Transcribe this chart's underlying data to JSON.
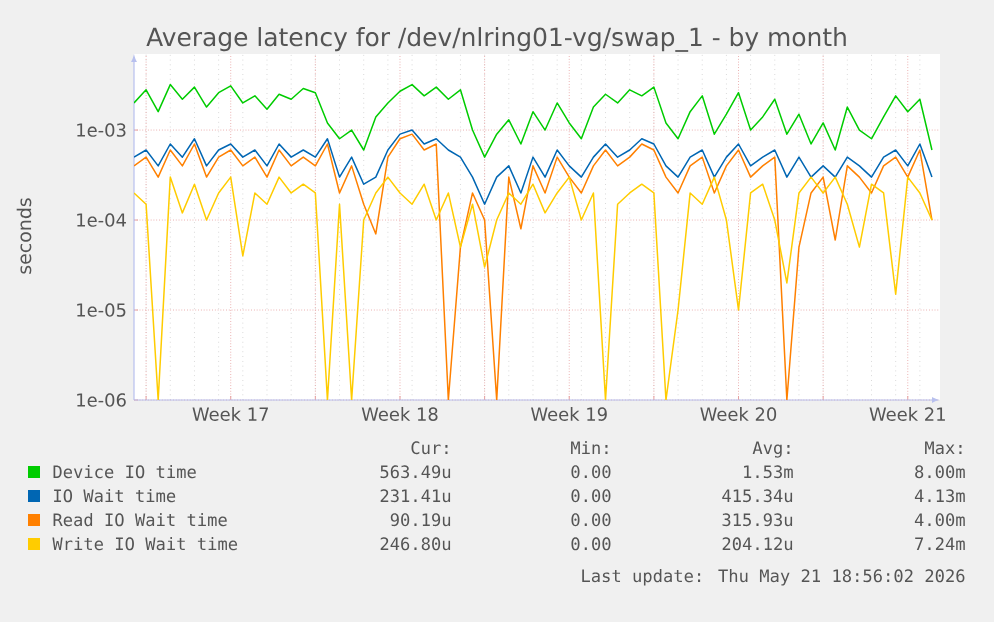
{
  "chart_data": {
    "type": "line",
    "title": "Average latency for /dev/nlring01-vg/swap_1 - by month",
    "ylabel": "seconds",
    "log": "y",
    "grid": true,
    "legend": "bottom",
    "ylim": [
      1e-06,
      0.007
    ],
    "yticks": [
      {
        "value": 1e-06,
        "label": "1e-06"
      },
      {
        "value": 1e-05,
        "label": "1e-05"
      },
      {
        "value": 0.0001,
        "label": "1e-04"
      },
      {
        "value": 0.001,
        "label": "1e-03"
      }
    ],
    "xlim": [
      "2026-04-19T12:00",
      "2026-05-22T20:00"
    ],
    "xticks": [
      {
        "value": "2026-04-20",
        "label": null
      },
      {
        "value": "2026-04-23T12:00",
        "label": "Week 17"
      },
      {
        "value": "2026-04-27",
        "label": null
      },
      {
        "value": "2026-04-30T12:00",
        "label": "Week 18"
      },
      {
        "value": "2026-05-04",
        "label": null
      },
      {
        "value": "2026-05-07T12:00",
        "label": "Week 19"
      },
      {
        "value": "2026-05-11",
        "label": null
      },
      {
        "value": "2026-05-14T12:00",
        "label": "Week 20"
      },
      {
        "value": "2026-05-18",
        "label": null
      },
      {
        "value": "2026-05-21T12:00",
        "label": "Week 21"
      }
    ],
    "x": [
      "2026-04-19T12:00",
      "2026-04-20",
      "2026-04-20T12:00",
      "2026-04-21",
      "2026-04-21T12:00",
      "2026-04-22",
      "2026-04-22T12:00",
      "2026-04-23",
      "2026-04-23T12:00",
      "2026-04-24",
      "2026-04-24T12:00",
      "2026-04-25",
      "2026-04-25T12:00",
      "2026-04-26",
      "2026-04-26T12:00",
      "2026-04-27",
      "2026-04-27T12:00",
      "2026-04-28",
      "2026-04-28T12:00",
      "2026-04-29",
      "2026-04-29T12:00",
      "2026-04-30",
      "2026-04-30T12:00",
      "2026-05-01",
      "2026-05-01T12:00",
      "2026-05-02",
      "2026-05-02T12:00",
      "2026-05-03",
      "2026-05-03T12:00",
      "2026-05-04",
      "2026-05-04T12:00",
      "2026-05-05",
      "2026-05-05T12:00",
      "2026-05-06",
      "2026-05-06T12:00",
      "2026-05-07",
      "2026-05-07T12:00",
      "2026-05-08",
      "2026-05-08T12:00",
      "2026-05-09",
      "2026-05-09T12:00",
      "2026-05-10",
      "2026-05-10T12:00",
      "2026-05-11",
      "2026-05-11T12:00",
      "2026-05-12",
      "2026-05-12T12:00",
      "2026-05-13",
      "2026-05-13T12:00",
      "2026-05-14",
      "2026-05-14T12:00",
      "2026-05-15",
      "2026-05-15T12:00",
      "2026-05-16",
      "2026-05-16T12:00",
      "2026-05-17",
      "2026-05-17T12:00",
      "2026-05-18",
      "2026-05-18T12:00",
      "2026-05-19",
      "2026-05-19T12:00",
      "2026-05-20",
      "2026-05-20T12:00",
      "2026-05-21",
      "2026-05-21T12:00",
      "2026-05-22",
      "2026-05-22T12:00"
    ],
    "series": [
      {
        "name": "Device IO time",
        "color": "#00cc00",
        "values": [
          0.002,
          0.0028,
          0.0016,
          0.0032,
          0.0022,
          0.003,
          0.0018,
          0.0026,
          0.0031,
          0.002,
          0.0024,
          0.0017,
          0.0025,
          0.0022,
          0.0029,
          0.0026,
          0.0012,
          0.0008,
          0.001,
          0.0006,
          0.0014,
          0.002,
          0.0027,
          0.0032,
          0.0024,
          0.003,
          0.0022,
          0.0028,
          0.001,
          0.0005,
          0.0009,
          0.0013,
          0.0007,
          0.0016,
          0.001,
          0.002,
          0.0012,
          0.0008,
          0.0018,
          0.0025,
          0.002,
          0.0028,
          0.0024,
          0.003,
          0.0012,
          0.0008,
          0.0016,
          0.0024,
          0.0009,
          0.0015,
          0.0026,
          0.001,
          0.0014,
          0.0022,
          0.0009,
          0.0015,
          0.0007,
          0.0012,
          0.0006,
          0.0018,
          0.001,
          0.0008,
          0.0014,
          0.0024,
          0.0016,
          0.0022,
          0.0006
        ]
      },
      {
        "name": "IO Wait time",
        "color": "#0066b3",
        "values": [
          0.0005,
          0.0006,
          0.0004,
          0.0007,
          0.0005,
          0.0008,
          0.0004,
          0.0006,
          0.0007,
          0.0005,
          0.0006,
          0.0004,
          0.0007,
          0.0005,
          0.0006,
          0.0005,
          0.0008,
          0.0003,
          0.0005,
          0.00025,
          0.0003,
          0.0006,
          0.0009,
          0.001,
          0.0007,
          0.0008,
          0.0006,
          0.0005,
          0.0003,
          0.00015,
          0.0003,
          0.0004,
          0.0002,
          0.0005,
          0.0003,
          0.0006,
          0.0004,
          0.0003,
          0.0005,
          0.0007,
          0.0005,
          0.0006,
          0.0008,
          0.0007,
          0.0004,
          0.0003,
          0.0005,
          0.0006,
          0.0003,
          0.0005,
          0.0007,
          0.0004,
          0.0005,
          0.0006,
          0.0003,
          0.0005,
          0.0003,
          0.0004,
          0.0003,
          0.0005,
          0.0004,
          0.0003,
          0.0005,
          0.0006,
          0.0004,
          0.0007,
          0.0003
        ]
      },
      {
        "name": "Read IO Wait time",
        "color": "#ff8000",
        "values": [
          0.0004,
          0.0005,
          0.0003,
          0.0006,
          0.0004,
          0.0007,
          0.0003,
          0.0005,
          0.0006,
          0.0004,
          0.0005,
          0.0003,
          0.0006,
          0.0004,
          0.0005,
          0.0004,
          0.0007,
          0.0002,
          0.0004,
          0.00015,
          7e-05,
          0.0005,
          0.0008,
          0.0009,
          0.0006,
          0.0007,
          1e-06,
          5e-05,
          0.0002,
          0.0001,
          1e-06,
          0.0003,
          8e-05,
          0.0004,
          0.0002,
          0.0005,
          0.0003,
          0.0002,
          0.0004,
          0.0006,
          0.0004,
          0.0005,
          0.0007,
          0.0006,
          0.0003,
          0.0002,
          0.0004,
          0.0005,
          0.0002,
          0.0004,
          0.0006,
          0.0003,
          0.0004,
          0.0005,
          1e-06,
          5e-05,
          0.0002,
          0.0003,
          6e-05,
          0.0004,
          0.0003,
          0.0002,
          0.0004,
          0.0005,
          0.0003,
          0.0006,
          0.0001
        ]
      },
      {
        "name": "Write IO Wait time",
        "color": "#ffcc00",
        "values": [
          0.0002,
          0.00015,
          1e-06,
          0.0003,
          0.00012,
          0.00025,
          0.0001,
          0.0002,
          0.0003,
          4e-05,
          0.0002,
          0.00015,
          0.0003,
          0.0002,
          0.00025,
          0.0002,
          1e-06,
          0.00015,
          1e-06,
          0.0001,
          0.0002,
          0.0003,
          0.0002,
          0.00015,
          0.00025,
          0.0001,
          0.0002,
          5e-05,
          0.00015,
          3e-05,
          0.0001,
          0.0002,
          0.00015,
          0.00025,
          0.00012,
          0.0002,
          0.0003,
          0.0001,
          0.0002,
          1e-06,
          0.00015,
          0.0002,
          0.00025,
          0.0002,
          1e-06,
          1e-05,
          0.0002,
          0.00015,
          0.0003,
          0.0001,
          1e-05,
          0.0002,
          0.00025,
          0.0001,
          2e-05,
          0.0002,
          0.0003,
          0.0002,
          0.0003,
          0.00015,
          5e-05,
          0.00025,
          0.0002,
          1.5e-05,
          0.0003,
          0.0002,
          0.0001
        ]
      }
    ],
    "annotations": [
      "Cur:",
      "Min:",
      "Avg:",
      "Max:",
      "563.49u",
      "0.00",
      "1.53m",
      "8.00m",
      "231.41u",
      "0.00",
      "415.34u",
      "4.13m",
      "90.19u",
      "0.00",
      "315.93u",
      "4.00m",
      "246.80u",
      "0.00",
      "204.12u",
      "7.24m",
      "Last update: Thu May 21 18:56:02 2026"
    ]
  }
}
